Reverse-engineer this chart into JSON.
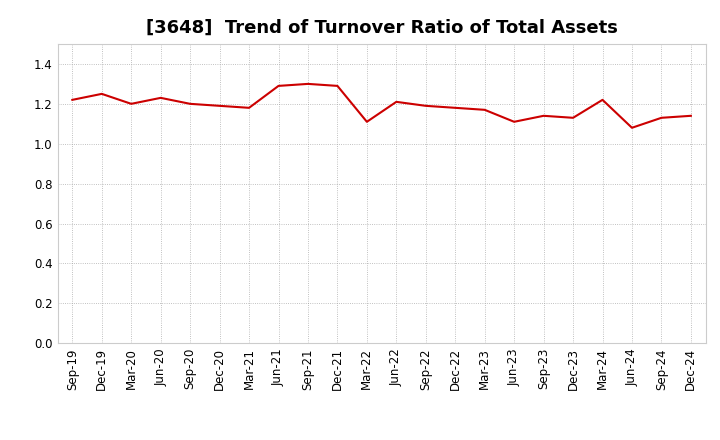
{
  "title": "[3648]  Trend of Turnover Ratio of Total Assets",
  "x_labels": [
    "Sep-19",
    "Dec-19",
    "Mar-20",
    "Jun-20",
    "Sep-20",
    "Dec-20",
    "Mar-21",
    "Jun-21",
    "Sep-21",
    "Dec-21",
    "Mar-22",
    "Jun-22",
    "Sep-22",
    "Dec-22",
    "Mar-23",
    "Jun-23",
    "Sep-23",
    "Dec-23",
    "Mar-24",
    "Jun-24",
    "Sep-24",
    "Dec-24"
  ],
  "values": [
    1.22,
    1.25,
    1.2,
    1.23,
    1.2,
    1.19,
    1.18,
    1.29,
    1.3,
    1.29,
    1.11,
    1.21,
    1.19,
    1.18,
    1.17,
    1.11,
    1.14,
    1.13,
    1.22,
    1.08,
    1.13,
    1.14
  ],
  "line_color": "#cc0000",
  "line_width": 1.5,
  "ylim": [
    0.0,
    1.5
  ],
  "yticks": [
    0.0,
    0.2,
    0.4,
    0.6,
    0.8,
    1.0,
    1.2,
    1.4
  ],
  "grid_color": "#999999",
  "grid_linestyle": ":",
  "bg_color": "#ffffff",
  "plot_bg_color": "#f0f0f0",
  "title_fontsize": 13,
  "tick_fontsize": 8.5
}
